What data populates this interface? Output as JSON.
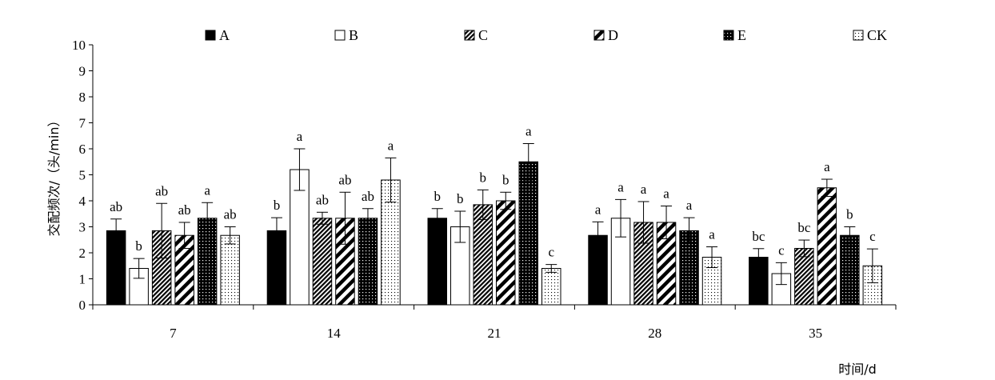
{
  "chart_data": {
    "type": "bar",
    "xlabel": "时间/d",
    "ylabel": "交配频次/（头/min）",
    "ylim": [
      0,
      10
    ],
    "yticks": [
      0,
      1,
      2,
      3,
      4,
      5,
      6,
      7,
      8,
      9,
      10
    ],
    "categories": [
      "7",
      "14",
      "21",
      "28",
      "35"
    ],
    "legend_position": "top",
    "grid": false,
    "series": [
      {
        "name": "A",
        "pattern": "solid-black",
        "values": [
          2.85,
          2.85,
          3.33,
          2.67,
          1.83
        ],
        "errors": [
          0.45,
          0.5,
          0.37,
          0.52,
          0.33
        ],
        "labels": [
          "ab",
          "b",
          "b",
          "a",
          "bc"
        ]
      },
      {
        "name": "B",
        "pattern": "white",
        "values": [
          1.4,
          5.2,
          3.0,
          3.33,
          1.2
        ],
        "errors": [
          0.38,
          0.8,
          0.6,
          0.72,
          0.42
        ],
        "labels": [
          "b",
          "a",
          "b",
          "a",
          "c"
        ]
      },
      {
        "name": "C",
        "pattern": "fine-diagonal",
        "values": [
          2.85,
          3.33,
          3.85,
          3.17,
          2.17
        ],
        "errors": [
          1.05,
          0.23,
          0.57,
          0.8,
          0.32
        ],
        "labels": [
          "ab",
          "ab",
          "b",
          "a",
          "bc"
        ]
      },
      {
        "name": "D",
        "pattern": "bold-diagonal",
        "values": [
          2.67,
          3.33,
          4.0,
          3.17,
          4.5
        ],
        "errors": [
          0.5,
          1.0,
          0.33,
          0.63,
          0.33
        ],
        "labels": [
          "ab",
          "ab",
          "b",
          "a",
          "a"
        ]
      },
      {
        "name": "E",
        "pattern": "black-dotted",
        "values": [
          3.33,
          3.33,
          5.5,
          2.85,
          2.67
        ],
        "errors": [
          0.6,
          0.37,
          0.7,
          0.5,
          0.33
        ],
        "labels": [
          "a",
          "ab",
          "a",
          "a",
          "b"
        ]
      },
      {
        "name": "CK",
        "pattern": "white-dotted",
        "values": [
          2.67,
          4.8,
          1.4,
          1.83,
          1.5
        ],
        "errors": [
          0.33,
          0.85,
          0.15,
          0.4,
          0.65
        ],
        "labels": [
          "ab",
          "a",
          "c",
          "a",
          "c"
        ]
      }
    ]
  }
}
